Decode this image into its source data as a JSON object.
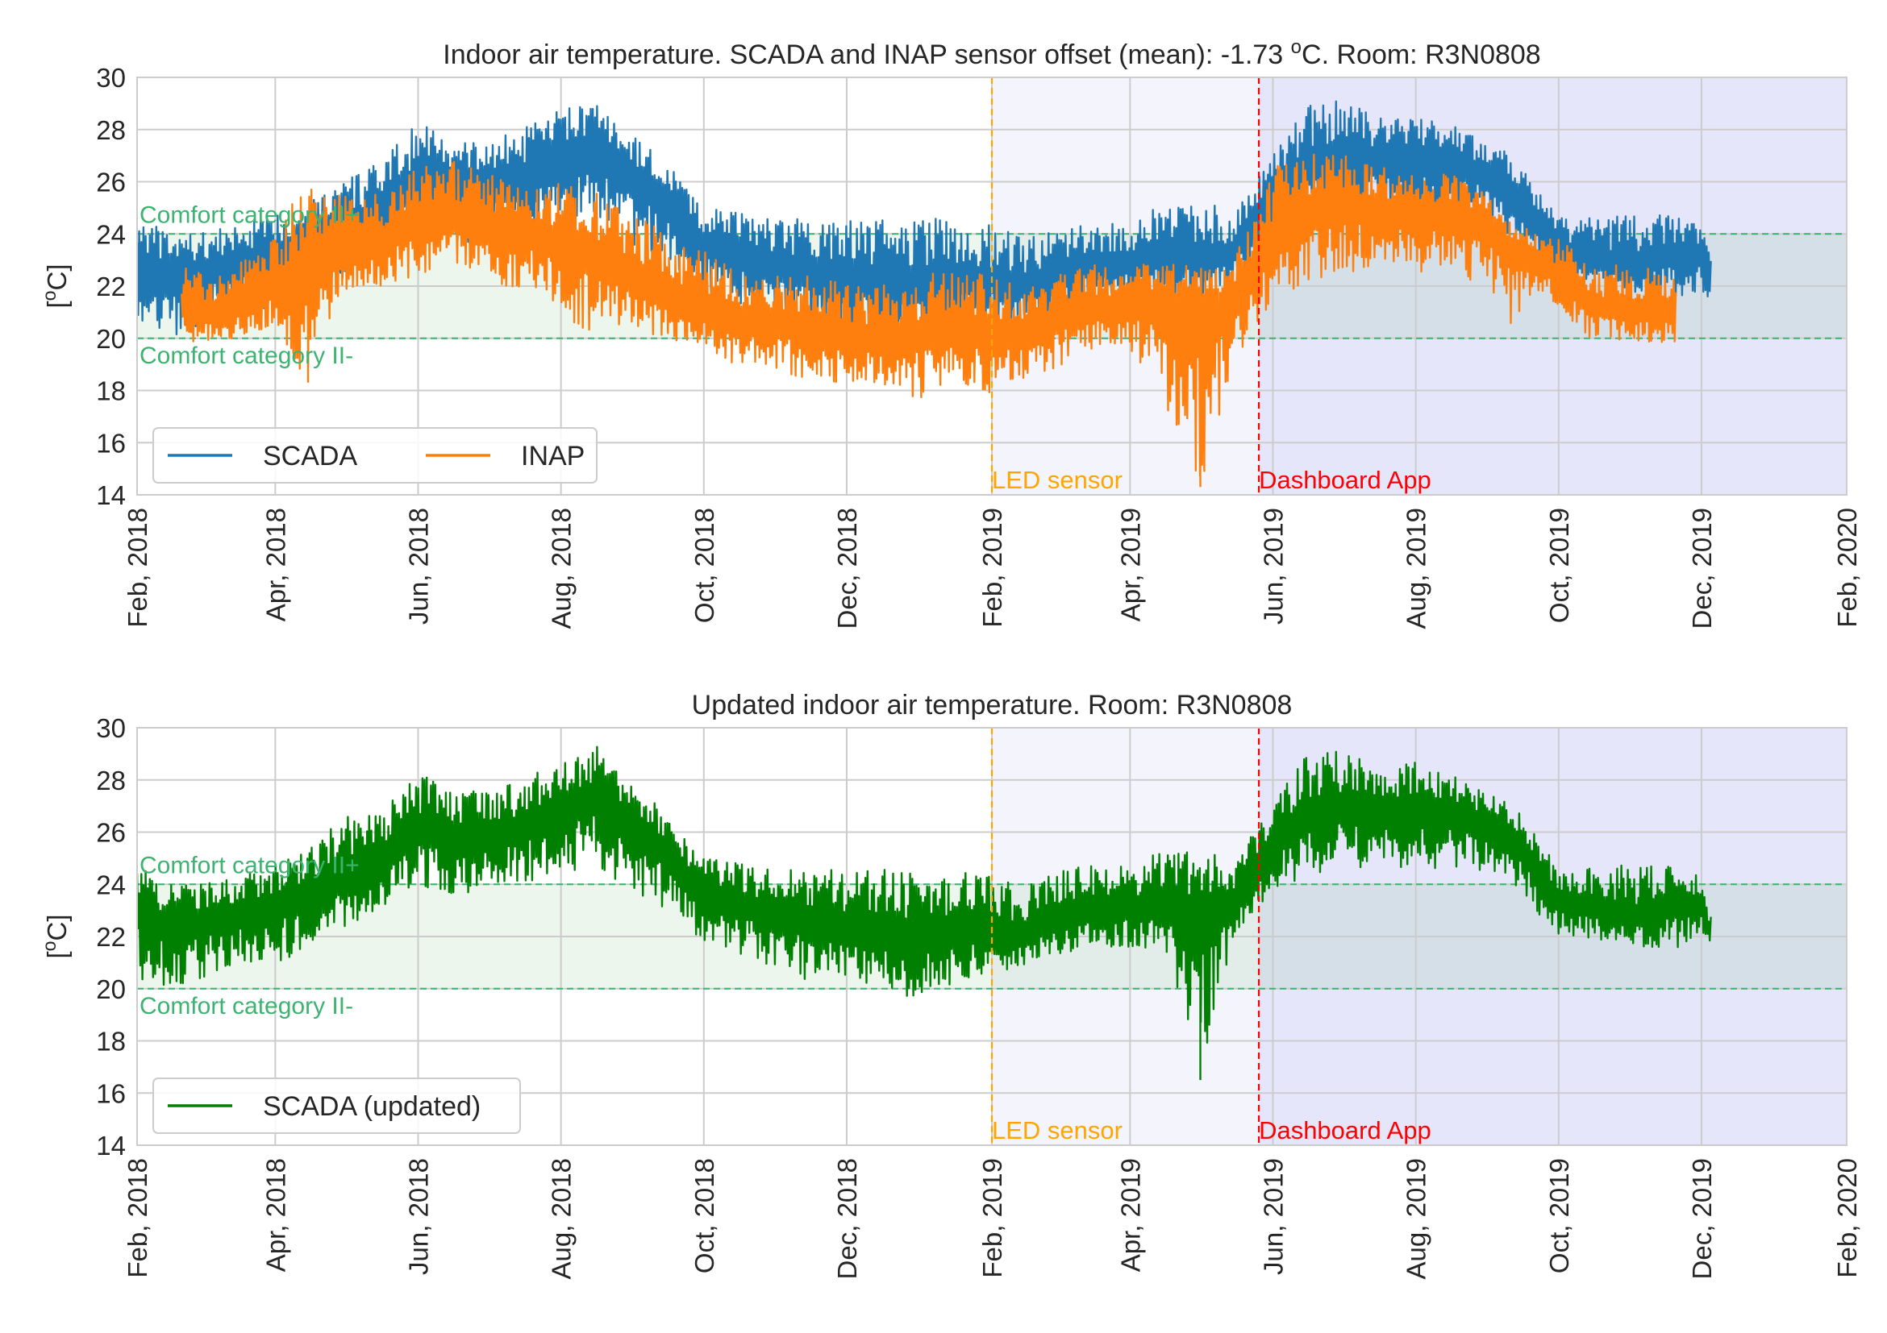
{
  "chart_data": [
    {
      "type": "line",
      "title_pre": "Indoor air temperature. SCADA and INAP sensor offset (mean): -1.73 ",
      "title_sup": "o",
      "title_post": "C. Room: R3N0808",
      "ylabel_pre": "[",
      "ylabel_sup": "o",
      "ylabel_post": "C]",
      "xlabel": "",
      "ylim": [
        14,
        30
      ],
      "yticks": [
        "14",
        "16",
        "18",
        "20",
        "22",
        "24",
        "26",
        "28",
        "30"
      ],
      "x_range": [
        "2018-02-01",
        "2020-02-01"
      ],
      "x_ticks": [
        "Feb, 2018",
        "Apr, 2018",
        "Jun, 2018",
        "Aug, 2018",
        "Oct, 2018",
        "Dec, 2018",
        "Feb, 2019",
        "Apr, 2019",
        "Jun, 2019",
        "Aug, 2019",
        "Oct, 2019",
        "Dec, 2019",
        "Feb, 2020"
      ],
      "grid": true,
      "legend": "lower-left",
      "comfort_band": {
        "lower": 20,
        "upper": 24,
        "upper_label": "Comfort category II+",
        "lower_label": "Comfort category II-"
      },
      "shaded_periods": [
        {
          "from": "2019-02-01",
          "to": "2019-05-26",
          "color": "#f4f4fc"
        },
        {
          "from": "2019-05-26",
          "to": "2020-02-01",
          "color": "#e6e6fa"
        }
      ],
      "events": [
        {
          "date": "2019-02-01",
          "label": "LED sensor",
          "color": "#ffa500"
        },
        {
          "date": "2019-05-26",
          "label": "Dashboard App",
          "color": "#ff0000"
        }
      ],
      "series": [
        {
          "name": "SCADA",
          "color": "#1f77b4",
          "x": [
            "2018-02-01",
            "2018-02-15",
            "2018-03-01",
            "2018-03-15",
            "2018-04-01",
            "2018-04-15",
            "2018-05-01",
            "2018-05-15",
            "2018-06-01",
            "2018-06-15",
            "2018-07-01",
            "2018-07-15",
            "2018-08-01",
            "2018-08-15",
            "2018-09-01",
            "2018-09-15",
            "2018-10-01",
            "2018-10-15",
            "2018-11-01",
            "2018-11-15",
            "2018-12-01",
            "2018-12-15",
            "2019-01-01",
            "2019-01-15",
            "2019-02-01",
            "2019-02-15",
            "2019-03-01",
            "2019-03-15",
            "2019-04-01",
            "2019-04-15",
            "2019-05-01",
            "2019-05-15",
            "2019-06-01",
            "2019-06-15",
            "2019-07-01",
            "2019-07-15",
            "2019-08-01",
            "2019-08-15",
            "2019-09-01",
            "2019-09-15",
            "2019-10-01",
            "2019-10-15",
            "2019-11-01",
            "2019-11-15",
            "2019-12-01",
            "2019-12-05"
          ],
          "y": [
            23.0,
            22.4,
            22.5,
            22.8,
            23.2,
            23.6,
            24.2,
            24.6,
            26.2,
            25.8,
            25.9,
            26.1,
            27.0,
            27.3,
            26.2,
            25.3,
            23.6,
            23.4,
            22.8,
            22.6,
            22.3,
            22.0,
            22.0,
            22.2,
            22.1,
            21.9,
            22.5,
            22.8,
            22.9,
            23.1,
            23.0,
            23.2,
            25.6,
            26.6,
            27.0,
            26.9,
            26.9,
            26.7,
            26.3,
            25.4,
            23.4,
            23.1,
            22.6,
            23.1,
            23.3,
            22.0
          ],
          "ymin": [
            20.4,
            20.0,
            20.4,
            21.0,
            21.0,
            21.5,
            22.3,
            23.0,
            24.0,
            23.6,
            23.8,
            24.0,
            24.2,
            24.8,
            23.6,
            22.9,
            21.6,
            21.4,
            20.8,
            20.3,
            20.3,
            20.0,
            19.8,
            20.2,
            20.8,
            20.5,
            20.6,
            21.2,
            21.5,
            21.7,
            21.5,
            22.0,
            23.8,
            24.3,
            24.6,
            24.7,
            24.5,
            24.6,
            24.5,
            23.6,
            22.0,
            21.8,
            21.6,
            21.6,
            21.5,
            21.3
          ],
          "ymax": [
            24.7,
            24.0,
            24.1,
            24.3,
            24.8,
            25.3,
            26.2,
            26.7,
            28.3,
            27.5,
            27.6,
            28.0,
            28.8,
            29.0,
            27.8,
            26.8,
            25.0,
            24.8,
            24.5,
            24.6,
            24.6,
            24.6,
            24.6,
            24.6,
            24.4,
            23.8,
            24.2,
            24.4,
            24.5,
            25.1,
            25.3,
            24.8,
            27.0,
            29.0,
            29.1,
            28.5,
            28.6,
            28.3,
            27.6,
            26.7,
            24.6,
            24.6,
            24.8,
            24.8,
            24.3,
            23.0
          ]
        },
        {
          "name": "INAP",
          "color": "#ff7f0e",
          "x": [
            "2018-02-20",
            "2018-03-01",
            "2018-03-15",
            "2018-04-01",
            "2018-04-15",
            "2018-05-01",
            "2018-05-15",
            "2018-06-01",
            "2018-06-15",
            "2018-07-01",
            "2018-07-10",
            "2018-07-25",
            "2018-08-01",
            "2018-08-15",
            "2018-09-01",
            "2018-09-15",
            "2018-10-01",
            "2018-10-15",
            "2018-11-01",
            "2018-11-15",
            "2018-12-01",
            "2018-12-15",
            "2019-01-01",
            "2019-01-15",
            "2019-02-01",
            "2019-02-15",
            "2019-03-01",
            "2019-03-15",
            "2019-04-01",
            "2019-04-15",
            "2019-05-01",
            "2019-05-15",
            "2019-06-01",
            "2019-06-15",
            "2019-07-01",
            "2019-07-15",
            "2019-08-01",
            "2019-08-15",
            "2019-09-01",
            "2019-09-10",
            "2019-09-25",
            "2019-10-01",
            "2019-10-15",
            "2019-11-01",
            "2019-11-20"
          ],
          "y": [
            21.3,
            20.9,
            21.2,
            22.0,
            22.6,
            23.6,
            23.7,
            24.6,
            24.8,
            24.5,
            24.0,
            24.0,
            23.3,
            23.2,
            22.4,
            21.6,
            21.0,
            20.6,
            20.6,
            20.2,
            20.0,
            20.0,
            20.1,
            20.4,
            20.2,
            20.0,
            20.7,
            21.2,
            21.2,
            21.4,
            21.0,
            21.5,
            23.8,
            24.8,
            25.2,
            24.9,
            24.8,
            24.7,
            24.6,
            23.5,
            22.8,
            22.3,
            21.2,
            21.0,
            21.0
          ],
          "ymin": [
            19.8,
            19.8,
            20.0,
            20.4,
            18.3,
            21.8,
            22.0,
            22.4,
            22.8,
            22.5,
            21.8,
            22.0,
            20.5,
            20.3,
            20.2,
            19.9,
            19.5,
            19.0,
            18.8,
            18.4,
            18.3,
            18.0,
            17.6,
            18.5,
            17.8,
            18.5,
            18.9,
            19.6,
            19.6,
            17.6,
            14.3,
            19.0,
            21.5,
            22.0,
            22.5,
            22.4,
            22.5,
            22.8,
            21.5,
            20.5,
            21.8,
            21.0,
            20.0,
            19.9,
            19.8
          ],
          "ymax": [
            22.8,
            22.5,
            22.9,
            23.8,
            26.4,
            25.8,
            25.5,
            26.5,
            26.8,
            26.3,
            25.9,
            26.1,
            26.0,
            25.6,
            24.8,
            24.0,
            23.4,
            22.6,
            22.5,
            22.4,
            22.1,
            22.0,
            22.3,
            22.8,
            22.3,
            22.0,
            22.5,
            22.8,
            22.8,
            22.9,
            22.7,
            23.0,
            26.5,
            27.2,
            27.0,
            26.8,
            26.4,
            26.3,
            25.7,
            24.5,
            23.9,
            23.8,
            22.8,
            22.8,
            22.6
          ]
        }
      ]
    },
    {
      "type": "line",
      "title": "Updated indoor air temperature. Room: R3N0808",
      "ylabel_pre": "[",
      "ylabel_sup": "o",
      "ylabel_post": "C]",
      "xlabel": "",
      "ylim": [
        14,
        30
      ],
      "yticks": [
        "14",
        "16",
        "18",
        "20",
        "22",
        "24",
        "26",
        "28",
        "30"
      ],
      "x_range": [
        "2018-02-01",
        "2020-02-01"
      ],
      "x_ticks": [
        "Feb, 2018",
        "Apr, 2018",
        "Jun, 2018",
        "Aug, 2018",
        "Oct, 2018",
        "Dec, 2018",
        "Feb, 2019",
        "Apr, 2019",
        "Jun, 2019",
        "Aug, 2019",
        "Oct, 2019",
        "Dec, 2019",
        "Feb, 2020"
      ],
      "grid": true,
      "legend": "lower-left",
      "comfort_band": {
        "lower": 20,
        "upper": 24,
        "upper_label": "Comfort category II+",
        "lower_label": "Comfort category II-"
      },
      "shaded_periods": [
        {
          "from": "2019-02-01",
          "to": "2019-05-26",
          "color": "#f4f4fc"
        },
        {
          "from": "2019-05-26",
          "to": "2020-02-01",
          "color": "#e6e6fa"
        }
      ],
      "events": [
        {
          "date": "2019-02-01",
          "label": "LED sensor",
          "color": "#ffa500"
        },
        {
          "date": "2019-05-26",
          "label": "Dashboard App",
          "color": "#ff0000"
        }
      ],
      "series": [
        {
          "name": "SCADA (updated)",
          "color": "#008000",
          "x": [
            "2018-02-01",
            "2018-02-15",
            "2018-03-01",
            "2018-03-15",
            "2018-04-01",
            "2018-04-15",
            "2018-05-01",
            "2018-05-15",
            "2018-06-01",
            "2018-06-15",
            "2018-07-01",
            "2018-07-15",
            "2018-08-01",
            "2018-08-15",
            "2018-09-01",
            "2018-09-15",
            "2018-10-01",
            "2018-10-15",
            "2018-11-01",
            "2018-11-15",
            "2018-12-01",
            "2018-12-15",
            "2019-01-01",
            "2019-01-15",
            "2019-02-01",
            "2019-02-15",
            "2019-03-01",
            "2019-03-15",
            "2019-04-01",
            "2019-04-15",
            "2019-05-01",
            "2019-05-15",
            "2019-06-01",
            "2019-06-15",
            "2019-07-01",
            "2019-07-15",
            "2019-08-01",
            "2019-08-15",
            "2019-09-01",
            "2019-09-15",
            "2019-10-01",
            "2019-10-15",
            "2019-11-01",
            "2019-11-15",
            "2019-12-01",
            "2019-12-05"
          ],
          "y": [
            23.0,
            22.4,
            22.5,
            22.8,
            23.2,
            23.6,
            24.2,
            24.6,
            26.2,
            25.8,
            25.9,
            26.1,
            27.0,
            27.3,
            26.2,
            25.3,
            23.6,
            23.4,
            22.8,
            22.6,
            22.3,
            22.0,
            22.0,
            22.2,
            22.1,
            22.0,
            22.6,
            22.9,
            23.0,
            23.1,
            23.0,
            23.2,
            25.6,
            26.6,
            27.0,
            26.9,
            26.9,
            26.7,
            26.3,
            25.4,
            23.4,
            23.1,
            22.6,
            23.1,
            23.3,
            22.0
          ],
          "ymin": [
            20.4,
            20.0,
            20.4,
            21.0,
            21.0,
            21.5,
            22.3,
            23.0,
            24.0,
            23.6,
            23.8,
            24.0,
            24.2,
            24.8,
            23.6,
            22.9,
            21.6,
            21.4,
            20.8,
            20.3,
            20.3,
            20.0,
            19.6,
            20.2,
            20.6,
            20.9,
            21.3,
            21.6,
            21.6,
            21.5,
            16.5,
            22.0,
            23.8,
            24.3,
            24.6,
            24.7,
            24.5,
            24.6,
            24.5,
            23.6,
            22.0,
            21.8,
            21.6,
            21.6,
            21.5,
            21.3
          ],
          "ymax": [
            24.7,
            24.0,
            24.1,
            24.3,
            24.8,
            25.3,
            26.7,
            26.7,
            28.3,
            27.5,
            27.6,
            28.0,
            28.8,
            29.4,
            27.8,
            26.8,
            25.0,
            24.8,
            24.5,
            24.6,
            24.6,
            24.6,
            24.6,
            24.6,
            24.4,
            24.0,
            24.5,
            24.8,
            24.9,
            25.2,
            25.3,
            24.9,
            27.0,
            29.0,
            29.1,
            28.5,
            28.7,
            28.3,
            27.6,
            26.7,
            24.6,
            24.6,
            24.8,
            24.8,
            24.3,
            23.0
          ]
        }
      ]
    }
  ]
}
